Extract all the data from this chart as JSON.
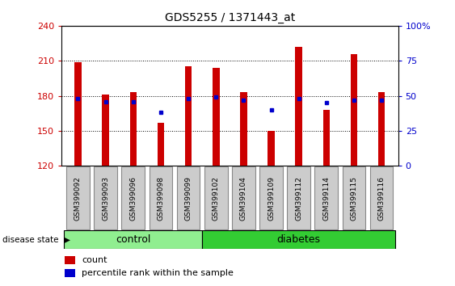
{
  "title": "GDS5255 / 1371443_at",
  "samples": [
    "GSM399092",
    "GSM399093",
    "GSM399096",
    "GSM399098",
    "GSM399099",
    "GSM399102",
    "GSM399104",
    "GSM399109",
    "GSM399112",
    "GSM399114",
    "GSM399115",
    "GSM399116"
  ],
  "groups": [
    "control",
    "control",
    "control",
    "control",
    "control",
    "diabetes",
    "diabetes",
    "diabetes",
    "diabetes",
    "diabetes",
    "diabetes",
    "diabetes"
  ],
  "counts": [
    209,
    181,
    183,
    157,
    205,
    204,
    183,
    150,
    222,
    168,
    216,
    183
  ],
  "percentiles": [
    48,
    46,
    46,
    38,
    48,
    49,
    47,
    40,
    48,
    45,
    47,
    47
  ],
  "ymin": 120,
  "ymax": 240,
  "yticks": [
    120,
    150,
    180,
    210,
    240
  ],
  "right_yticks": [
    0,
    25,
    50,
    75,
    100
  ],
  "bar_color": "#cc0000",
  "dot_color": "#0000cc",
  "control_color": "#90ee90",
  "diabetes_color": "#33cc33",
  "sample_box_color": "#cccccc",
  "plot_bg_color": "#ffffff",
  "bar_width": 0.25,
  "n_control": 5,
  "n_diabetes": 7,
  "legend_items": [
    "count",
    "percentile rank within the sample"
  ],
  "disease_state_label": "disease state"
}
